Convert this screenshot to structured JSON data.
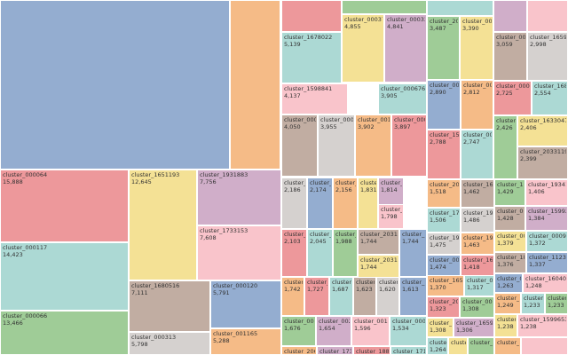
{
  "chart_data": {
    "type": "treemap",
    "title": "",
    "palette": {
      "blue": "#94add0",
      "orange": "#f5bb87",
      "red": "#ed989b",
      "teal": "#acd9d4",
      "green": "#9fcc97",
      "yellow": "#f4e195",
      "purple": "#d0aec9",
      "pink": "#f9c4cb",
      "brown": "#c1ada2",
      "gray": "#d5d1cf"
    },
    "tiles": [
      {
        "name": "",
        "value": null,
        "color": "blue"
      },
      {
        "name": "",
        "value": null,
        "color": "orange"
      },
      {
        "name": "cluster_000064",
        "value": "15,888",
        "color": "red"
      },
      {
        "name": "cluster_000117",
        "value": "14,423",
        "color": "teal"
      },
      {
        "name": "cluster_000066",
        "value": "13,466",
        "color": "green"
      },
      {
        "name": "cluster_1651193",
        "value": "12,645",
        "color": "yellow"
      },
      {
        "name": "cluster_1931883",
        "value": "7,756",
        "color": "purple"
      },
      {
        "name": "cluster_1733153",
        "value": "7,608",
        "color": "pink"
      },
      {
        "name": "cluster_1680516",
        "value": "7,111",
        "color": "brown"
      },
      {
        "name": "cluster_000120",
        "value": "5,791",
        "color": "blue"
      },
      {
        "name": "cluster_000313",
        "value": "5,798",
        "color": "gray"
      },
      {
        "name": "cluster_001165",
        "value": "5,288",
        "color": "orange"
      },
      {
        "name": "",
        "value": null,
        "color": "red"
      },
      {
        "name": "",
        "value": null,
        "color": "green"
      },
      {
        "name": "cluster_1678022",
        "value": "5,139",
        "color": "teal"
      },
      {
        "name": "cluster_000373",
        "value": "4,855",
        "color": "yellow"
      },
      {
        "name": "cluster_000334",
        "value": "4,841",
        "color": "purple"
      },
      {
        "name": "cluster_1598841",
        "value": "4,137",
        "color": "pink"
      },
      {
        "name": "cluster_000676",
        "value": "3,905",
        "color": "teal"
      },
      {
        "name": "cluster_000157",
        "value": "4,050",
        "color": "brown"
      },
      {
        "name": "cluster_000394",
        "value": "3,955",
        "color": "gray"
      },
      {
        "name": "cluster_001006",
        "value": "3,902",
        "color": "orange"
      },
      {
        "name": "cluster_000033",
        "value": "3,897",
        "color": "red"
      },
      {
        "name": "",
        "value": null,
        "color": "teal"
      },
      {
        "name": "cluster_2031",
        "value": "3,487",
        "color": "green"
      },
      {
        "name": "cluster_0002",
        "value": "3,390",
        "color": "yellow"
      },
      {
        "name": "",
        "value": null,
        "color": "purple"
      },
      {
        "name": "",
        "value": null,
        "color": "pink"
      },
      {
        "name": "cluster_001415",
        "value": "3,059",
        "color": "brown"
      },
      {
        "name": "cluster_1659356",
        "value": "2,998",
        "color": "gray"
      },
      {
        "name": "cluster_000085",
        "value": "2,890",
        "color": "blue"
      },
      {
        "name": "cluster_0000",
        "value": "2,812",
        "color": "orange"
      },
      {
        "name": "cluster_000026",
        "value": "2,725",
        "color": "red"
      },
      {
        "name": "cluster_1680",
        "value": "2,554",
        "color": "teal"
      },
      {
        "name": "cluster_1592",
        "value": "2,788",
        "color": "red"
      },
      {
        "name": "cluster_0017",
        "value": "2,747",
        "color": "teal"
      },
      {
        "name": "cluster_000",
        "value": "2,426",
        "color": "green"
      },
      {
        "name": "cluster_1633047",
        "value": "2,406",
        "color": "yellow"
      },
      {
        "name": "cluster_2033119",
        "value": "2,399",
        "color": "brown"
      },
      {
        "name": "cluster_000",
        "value": "2,186",
        "color": "gray"
      },
      {
        "name": "cluster_00",
        "value": "2,174",
        "color": "blue"
      },
      {
        "name": "cluster_16",
        "value": "2,156",
        "color": "orange"
      },
      {
        "name": "cluster_2",
        "value": "1,831",
        "color": "yellow"
      },
      {
        "name": "cluster_2058862",
        "value": "1,814",
        "color": "purple"
      },
      {
        "name": "cluster_1653043",
        "value": "1,798",
        "color": "pink"
      },
      {
        "name": "cluster_000",
        "value": "2,103",
        "color": "red"
      },
      {
        "name": "cluster_00",
        "value": "2,045",
        "color": "teal"
      },
      {
        "name": "cluster_1",
        "value": "1,988",
        "color": "green"
      },
      {
        "name": "cluster_2031166",
        "value": "1,744",
        "color": "brown"
      },
      {
        "name": "cluster_2031167",
        "value": "1,744",
        "color": "yellow"
      },
      {
        "name": "cluster_1",
        "value": "1,744",
        "color": "blue"
      },
      {
        "name": "cluster_0",
        "value": "1,742",
        "color": "orange"
      },
      {
        "name": "cluster_1",
        "value": "1,727",
        "color": "red"
      },
      {
        "name": "cluster_1",
        "value": "1,687",
        "color": "teal"
      },
      {
        "name": "cluster_1",
        "value": "1,623",
        "color": "brown"
      },
      {
        "name": "cluster_1",
        "value": "1,620",
        "color": "gray"
      },
      {
        "name": "cluster_1",
        "value": "1,613",
        "color": "blue"
      },
      {
        "name": "cluster_00035",
        "value": "1,676",
        "color": "green"
      },
      {
        "name": "cluster_00246",
        "value": "1,654",
        "color": "purple"
      },
      {
        "name": "cluster_00111",
        "value": "1,596",
        "color": "pink"
      },
      {
        "name": "cluster_00023",
        "value": "1,534",
        "color": "teal"
      },
      {
        "name": "cluster_206100",
        "value": "",
        "color": "orange"
      },
      {
        "name": "cluster_17339",
        "value": "",
        "color": "purple"
      },
      {
        "name": "cluster_18894",
        "value": "",
        "color": "red"
      },
      {
        "name": "cluster_17198",
        "value": "",
        "color": "teal"
      },
      {
        "name": "cluster_203194",
        "value": "1,518",
        "color": "orange"
      },
      {
        "name": "cluster_167802",
        "value": "1,462",
        "color": "brown"
      },
      {
        "name": "cluster_15991",
        "value": "1,429",
        "color": "green"
      },
      {
        "name": "cluster_19341",
        "value": "1,406",
        "color": "pink"
      },
      {
        "name": "cluster_176490",
        "value": "1,506",
        "color": "teal"
      },
      {
        "name": "cluster_197924",
        "value": "1,486",
        "color": "gray"
      },
      {
        "name": "cluster_00074",
        "value": "1,428",
        "color": "brown"
      },
      {
        "name": "cluster_15992",
        "value": "1,384",
        "color": "purple"
      },
      {
        "name": "cluster_197814",
        "value": "1,475",
        "color": "gray"
      },
      {
        "name": "cluster_196757",
        "value": "1,463",
        "color": "orange"
      },
      {
        "name": "cluster_00103",
        "value": "1,379",
        "color": "yellow"
      },
      {
        "name": "cluster_00095",
        "value": "1,372",
        "color": "teal"
      },
      {
        "name": "cluster_001084",
        "value": "1,474",
        "color": "blue"
      },
      {
        "name": "cluster_165933",
        "value": "1,418",
        "color": "red"
      },
      {
        "name": "cluster_18167",
        "value": "1,376",
        "color": "brown"
      },
      {
        "name": "cluster_11233",
        "value": "1,337",
        "color": "blue"
      },
      {
        "name": "cluster_16593",
        "value": "1,370",
        "color": "orange"
      },
      {
        "name": "cluster_00008",
        "value": "1,317",
        "color": "teal"
      },
      {
        "name": "cluster_0",
        "value": "1,263",
        "color": "blue"
      },
      {
        "name": "cluster_1604022",
        "value": "1,248",
        "color": "pink"
      },
      {
        "name": "cluster_205886",
        "value": "1,323",
        "color": "red"
      },
      {
        "name": "cluster_00265",
        "value": "1,308",
        "color": "green"
      },
      {
        "name": "cluster_0",
        "value": "1,249",
        "color": "orange"
      },
      {
        "name": "cluster_",
        "value": "1,233",
        "color": "teal"
      },
      {
        "name": "cluster_1",
        "value": "1,233",
        "color": "green"
      },
      {
        "name": "cluster_2033",
        "value": "1,308",
        "color": "yellow"
      },
      {
        "name": "cluster_1659356",
        "value": "1,306",
        "color": "purple"
      },
      {
        "name": "cluster_1599653",
        "value": "1,238",
        "color": "pink"
      },
      {
        "name": "cluster_",
        "value": "1,238",
        "color": "yellow"
      },
      {
        "name": "cluster_1",
        "value": "1,264",
        "color": "teal"
      },
      {
        "name": "cluster_1",
        "value": "",
        "color": "yellow"
      },
      {
        "name": "cluster_2033",
        "value": "",
        "color": "green"
      },
      {
        "name": "cluster_",
        "value": "",
        "color": "orange"
      },
      {
        "name": "",
        "value": null,
        "color": "pink"
      }
    ]
  }
}
